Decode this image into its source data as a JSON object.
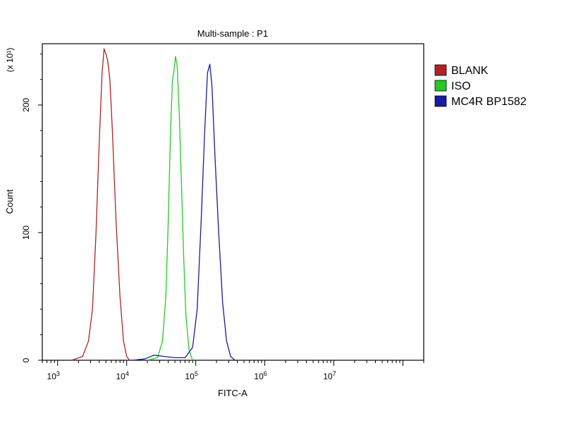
{
  "chart_data": {
    "type": "line",
    "title": "Multi-sample : P1",
    "xlabel": "FITC-A",
    "ylabel": "Count",
    "y_multiplier_label": "(x 10¹)",
    "x_scale": "log",
    "xlim": [
      600,
      200000000
    ],
    "ylim": [
      0,
      248
    ],
    "x_ticks": [
      {
        "value": 1000,
        "base": "10",
        "exp": "3"
      },
      {
        "value": 10000,
        "base": "10",
        "exp": "4"
      },
      {
        "value": 100000,
        "base": "10",
        "exp": "5"
      },
      {
        "value": 1000000,
        "base": "10",
        "exp": "6"
      },
      {
        "value": 10000000,
        "base": "10",
        "exp": "7"
      }
    ],
    "y_ticks": [
      0,
      100,
      200
    ],
    "grid": false,
    "legend_position": "right",
    "series": [
      {
        "name": "BLANK",
        "color": "#b22222",
        "points": [
          [
            1600,
            0
          ],
          [
            2300,
            3
          ],
          [
            2800,
            15
          ],
          [
            3200,
            40
          ],
          [
            3600,
            100
          ],
          [
            4000,
            170
          ],
          [
            4400,
            225
          ],
          [
            4700,
            244
          ],
          [
            5000,
            240
          ],
          [
            5300,
            235
          ],
          [
            5700,
            220
          ],
          [
            6200,
            180
          ],
          [
            7000,
            110
          ],
          [
            8000,
            50
          ],
          [
            9000,
            15
          ],
          [
            10000,
            3
          ],
          [
            11000,
            0
          ]
        ]
      },
      {
        "name": "ISO",
        "color": "#22cc22",
        "points": [
          [
            20000,
            0
          ],
          [
            28000,
            2
          ],
          [
            33000,
            15
          ],
          [
            37000,
            50
          ],
          [
            40000,
            110
          ],
          [
            43000,
            175
          ],
          [
            46000,
            220
          ],
          [
            48000,
            225
          ],
          [
            51000,
            238
          ],
          [
            54000,
            230
          ],
          [
            58000,
            190
          ],
          [
            62000,
            140
          ],
          [
            67000,
            80
          ],
          [
            72000,
            35
          ],
          [
            80000,
            8
          ],
          [
            90000,
            0
          ]
        ]
      },
      {
        "name": "MC4R BP1582",
        "color": "#1a1aa0",
        "points": [
          [
            12000,
            0
          ],
          [
            18000,
            1
          ],
          [
            25000,
            4
          ],
          [
            35000,
            3
          ],
          [
            50000,
            2
          ],
          [
            70000,
            2
          ],
          [
            90000,
            10
          ],
          [
            105000,
            40
          ],
          [
            120000,
            110
          ],
          [
            135000,
            180
          ],
          [
            148000,
            225
          ],
          [
            160000,
            232
          ],
          [
            172000,
            215
          ],
          [
            190000,
            160
          ],
          [
            215000,
            100
          ],
          [
            245000,
            45
          ],
          [
            280000,
            15
          ],
          [
            320000,
            3
          ],
          [
            370000,
            0
          ]
        ]
      }
    ]
  }
}
